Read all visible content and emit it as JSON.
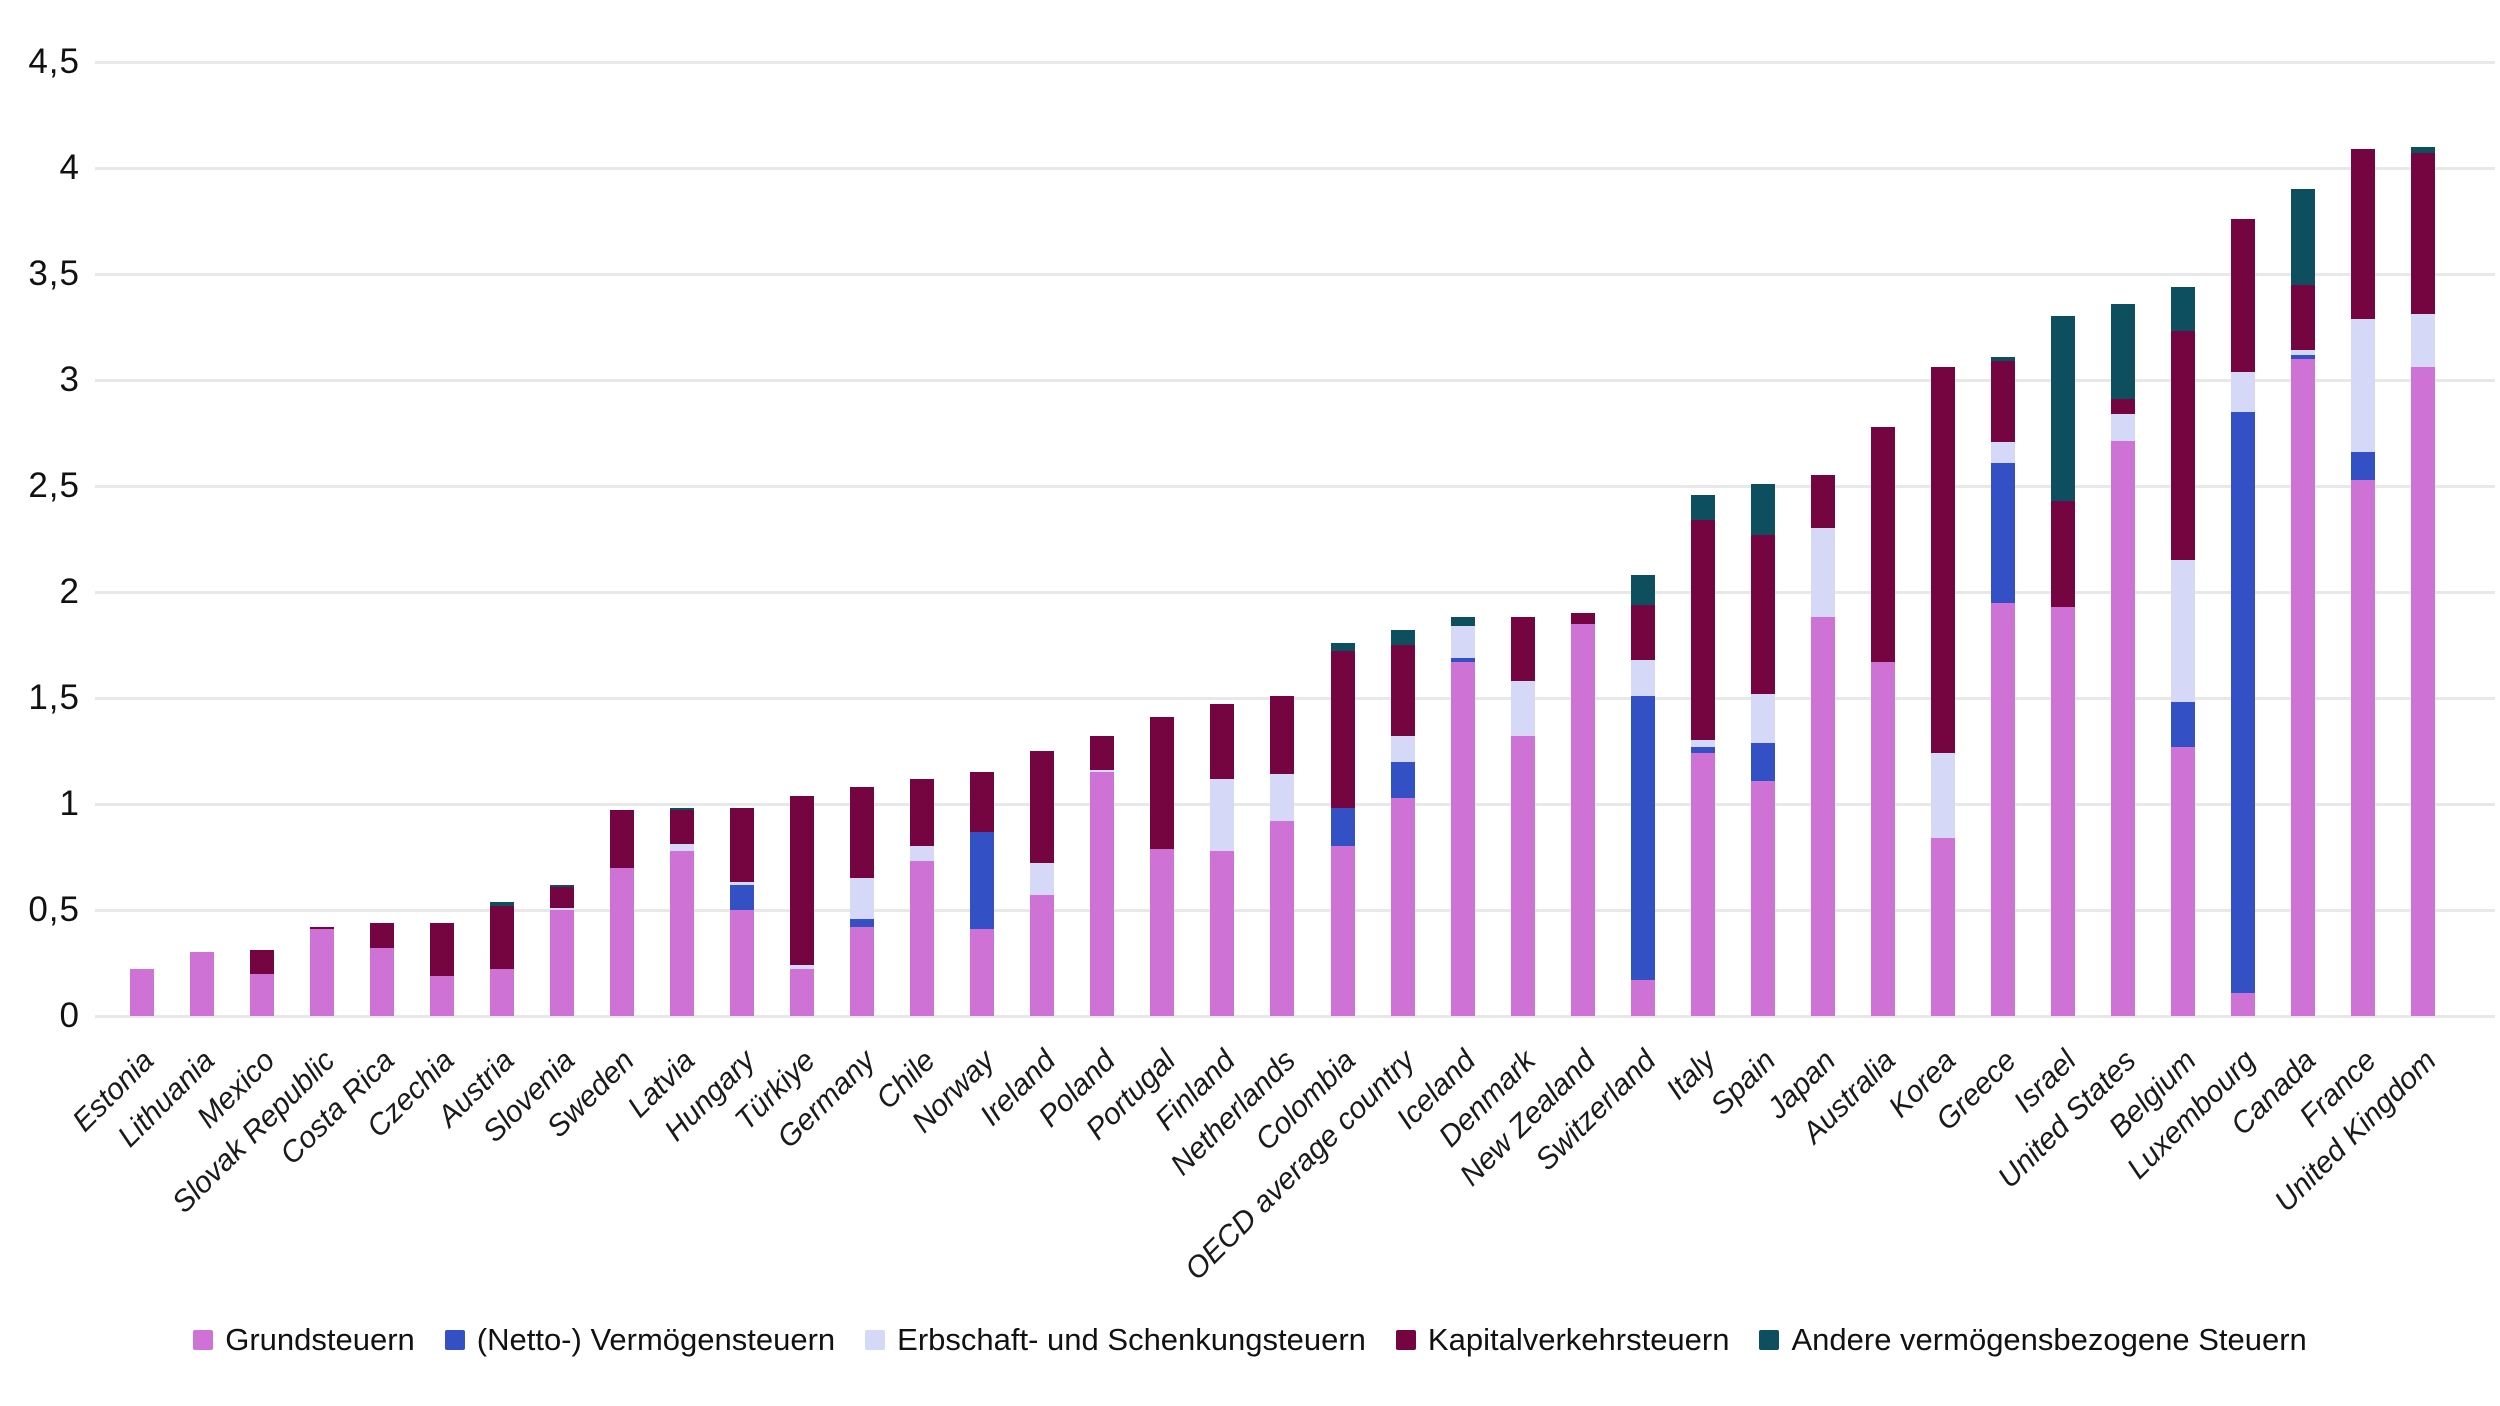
{
  "chart_data": {
    "type": "bar",
    "stacked": true,
    "title": "",
    "xlabel": "",
    "ylabel": "",
    "grid": true,
    "legend_position": "bottom",
    "y_axis": {
      "min": 0,
      "max": 4.5,
      "step": 0.5,
      "tick_labels": [
        "0",
        "0,5",
        "1",
        "1,5",
        "2",
        "2,5",
        "3",
        "3,5",
        "4",
        "4,5"
      ]
    },
    "categories": [
      "Estonia",
      "Lithuania",
      "Mexico",
      "Slovak Republic",
      "Costa Rica",
      "Czechia",
      "Austria",
      "Slovenia",
      "Sweden",
      "Latvia",
      "Hungary",
      "Türkiye",
      "Germany",
      "Chile",
      "Norway",
      "Ireland",
      "Poland",
      "Portugal",
      "Finland",
      "Netherlands",
      "Colombia",
      "OECD average country",
      "Iceland",
      "Denmark",
      "New Zealand",
      "Switzerland",
      "Italy",
      "Spain",
      "Japan",
      "Australia",
      "Korea",
      "Greece",
      "Israel",
      "United States",
      "Belgium",
      "Luxembourg",
      "Canada",
      "France",
      "United Kingdom"
    ],
    "series": [
      {
        "name": "Grundsteuern",
        "color": "#CE72D6",
        "values": [
          0.22,
          0.3,
          0.2,
          0.41,
          0.32,
          0.19,
          0.22,
          0.5,
          0.7,
          0.78,
          0.5,
          0.22,
          0.42,
          0.73,
          0.41,
          0.57,
          1.15,
          0.79,
          0.78,
          0.92,
          0.8,
          1.03,
          1.67,
          1.32,
          1.85,
          0.17,
          1.24,
          1.11,
          1.88,
          1.67,
          0.84,
          1.95,
          1.93,
          2.71,
          1.27,
          0.11,
          3.1,
          2.53,
          3.06
        ]
      },
      {
        "name": "(Netto-) Vermögensteuern",
        "color": "#3351C5",
        "values": [
          0,
          0,
          0,
          0,
          0,
          0,
          0,
          0,
          0,
          0,
          0.12,
          0,
          0.04,
          0,
          0.46,
          0,
          0,
          0,
          0,
          0,
          0.18,
          0.17,
          0.02,
          0,
          0,
          1.34,
          0.03,
          0.18,
          0,
          0,
          0,
          0.66,
          0,
          0,
          0.21,
          2.74,
          0.02,
          0.13,
          0
        ]
      },
      {
        "name": "Erbschaft- und Schenkungsteuern",
        "color": "#D6D8F8",
        "values": [
          0,
          0,
          0,
          0,
          0,
          0,
          0,
          0.01,
          0,
          0.03,
          0.01,
          0.02,
          0.19,
          0.07,
          0,
          0.15,
          0.01,
          0,
          0.34,
          0.22,
          0,
          0.12,
          0.15,
          0.26,
          0,
          0.17,
          0.03,
          0.23,
          0.42,
          0,
          0.4,
          0.1,
          0,
          0.13,
          0.67,
          0.19,
          0.02,
          0.63,
          0.25
        ]
      },
      {
        "name": "Kapitalverkehrsteuern",
        "color": "#740540",
        "values": [
          0,
          0,
          0.11,
          0.01,
          0.12,
          0.25,
          0.3,
          0.1,
          0.27,
          0.16,
          0.35,
          0.8,
          0.43,
          0.32,
          0.28,
          0.53,
          0.16,
          0.62,
          0.35,
          0.37,
          0.74,
          0.43,
          0,
          0.3,
          0.05,
          0.26,
          1.04,
          0.75,
          0.25,
          1.11,
          1.82,
          0.38,
          0.5,
          0.07,
          1.08,
          0.72,
          0.31,
          0.8,
          0.76
        ]
      },
      {
        "name": "Andere vermögensbezogene Steuern",
        "color": "#0D4F5E",
        "values": [
          0,
          0,
          0,
          0,
          0,
          0,
          0.02,
          0.01,
          0,
          0.01,
          0,
          0,
          0,
          0,
          0,
          0,
          0,
          0,
          0,
          0,
          0.04,
          0.07,
          0.04,
          0,
          0,
          0.14,
          0.12,
          0.24,
          0,
          0,
          0,
          0.02,
          0.87,
          0.45,
          0.21,
          0,
          0.45,
          0,
          0.03
        ]
      }
    ]
  },
  "colors": {
    "background": "#ffffff",
    "gridline": "#e8e8e8",
    "text": "#111111"
  }
}
